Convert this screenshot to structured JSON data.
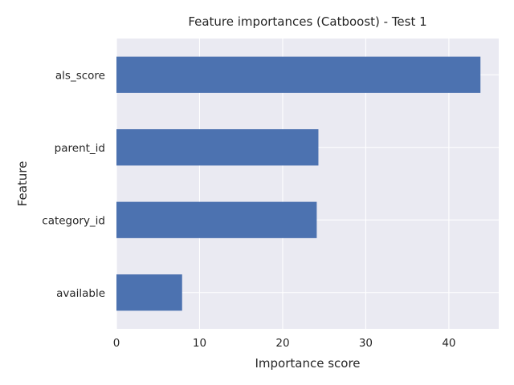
{
  "chart_data": {
    "type": "bar",
    "orientation": "horizontal",
    "title": "Feature importances (Catboost) - Test 1",
    "xlabel": "Importance score",
    "ylabel": "Feature",
    "categories": [
      "als_score",
      "parent_id",
      "category_id",
      "available"
    ],
    "values": [
      43.8,
      24.3,
      24.1,
      7.9
    ],
    "xlim": [
      0,
      46
    ],
    "xticks": [
      0,
      10,
      20,
      30,
      40
    ],
    "grid": true,
    "colors": {
      "bar": "#4c72b0",
      "plot_background": "#eaeaf2",
      "grid": "#ffffff",
      "text": "#262626"
    }
  }
}
